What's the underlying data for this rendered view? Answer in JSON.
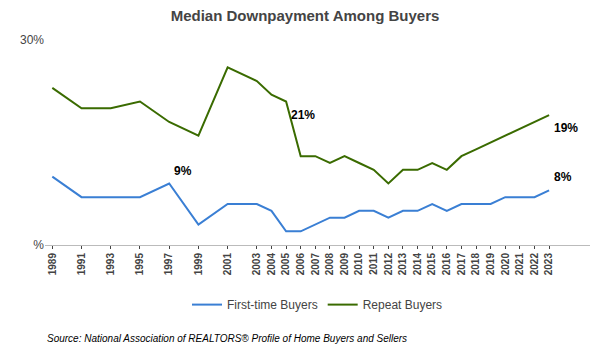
{
  "chart_data": {
    "type": "line",
    "title": "Median Downpayment Among Buyers",
    "x": [
      1989,
      1991,
      1993,
      1995,
      1997,
      1999,
      2001,
      2003,
      2004,
      2005,
      2006,
      2007,
      2008,
      2009,
      2010,
      2011,
      2012,
      2013,
      2014,
      2015,
      2016,
      2017,
      2018,
      2019,
      2020,
      2021,
      2022,
      2023
    ],
    "series": [
      {
        "name": "First-time Buyers",
        "color": "#3a7fd4",
        "values": [
          10,
          7,
          7,
          7,
          9,
          3,
          6,
          6,
          5,
          2,
          2,
          3,
          4,
          4,
          5,
          5,
          4,
          5,
          5,
          6,
          5,
          6,
          6,
          6,
          7,
          7,
          7,
          8
        ]
      },
      {
        "name": "Repeat Buyers",
        "color": "#3a6b00",
        "values": [
          23,
          20,
          20,
          21,
          18,
          16,
          26,
          24,
          22,
          21,
          13,
          13,
          12,
          13,
          12,
          11,
          9,
          11,
          11,
          12,
          11,
          13,
          14,
          15,
          16,
          17,
          18,
          19
        ]
      }
    ],
    "xlim": [
      1988.5,
      2025.8
    ],
    "xticks": [
      1989,
      1991,
      1993,
      1995,
      1997,
      1999,
      2001,
      2003,
      2004,
      2005,
      2006,
      2007,
      2008,
      2009,
      2010,
      2011,
      2012,
      2013,
      2014,
      2015,
      2016,
      2017,
      2018,
      2019,
      2020,
      2021,
      2022,
      2023
    ],
    "ylim": [
      0,
      30
    ],
    "yticks": [
      {
        "value": 0,
        "label": "%"
      },
      {
        "value": 30,
        "label": "30%"
      }
    ],
    "grid": false,
    "legend": "bottom",
    "annotations": [
      {
        "text": "9%",
        "x": 1997,
        "y": 9
      },
      {
        "text": "8%",
        "x": 2023,
        "y": 8
      },
      {
        "text": "21%",
        "x": 2005,
        "y": 21
      },
      {
        "text": "19%",
        "x": 2023,
        "y": 19
      }
    ],
    "source": "Source: National Association of REALTORS® Profile of Home Buyers and Sellers"
  }
}
